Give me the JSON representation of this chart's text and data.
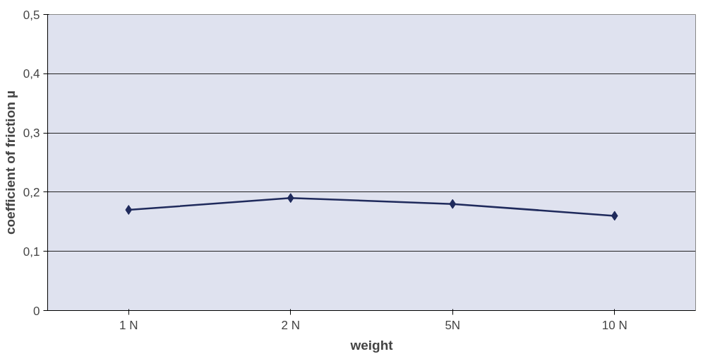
{
  "chart_data": {
    "type": "line",
    "xlabel": "weight",
    "ylabel": "coefficient of friction µ",
    "categories": [
      "1 N",
      "2 N",
      "5N",
      "10 N"
    ],
    "series": [
      {
        "color": "#1f2a5c",
        "values": [
          0.17,
          0.19,
          0.18,
          0.16
        ]
      }
    ],
    "ylim": [
      0,
      0.5
    ],
    "yticks": [
      0,
      {
        "value": 0.1,
        "label": "0,1"
      },
      {
        "value": 0.2,
        "label": "0,2"
      },
      {
        "value": 0.3,
        "label": "0,3"
      },
      {
        "value": 0.4,
        "label": "0,4"
      },
      {
        "value": 0.5,
        "label": "0,5"
      }
    ],
    "grid": "y",
    "marker": "diamond",
    "line_style": "solid"
  }
}
